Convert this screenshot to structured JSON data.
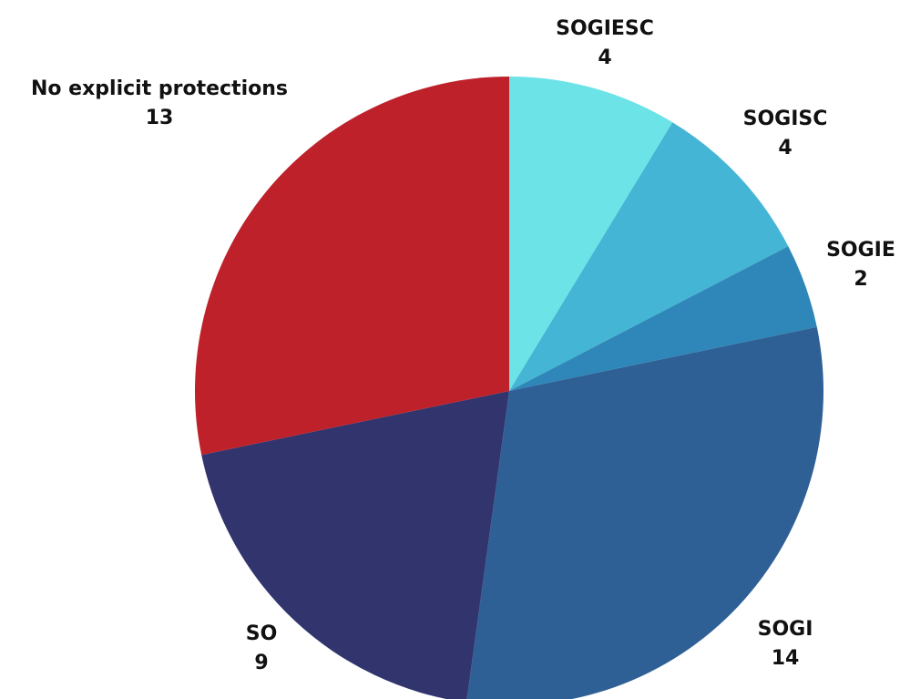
{
  "chart_data": {
    "type": "pie",
    "title": "",
    "start_angle_deg": 0,
    "direction": "clockwise",
    "slices": [
      {
        "label": "SOGIESC",
        "value": 4,
        "color": "#6be3e7"
      },
      {
        "label": "SOGISC",
        "value": 4,
        "color": "#44b5d4"
      },
      {
        "label": "SOGIE",
        "value": 2,
        "color": "#2e87b8"
      },
      {
        "label": "SOGI",
        "value": 14,
        "color": "#2e6096"
      },
      {
        "label": "SO",
        "value": 9,
        "color": "#31346d"
      },
      {
        "label": "No explicit protections",
        "value": 13,
        "color": "#be2129"
      }
    ]
  }
}
